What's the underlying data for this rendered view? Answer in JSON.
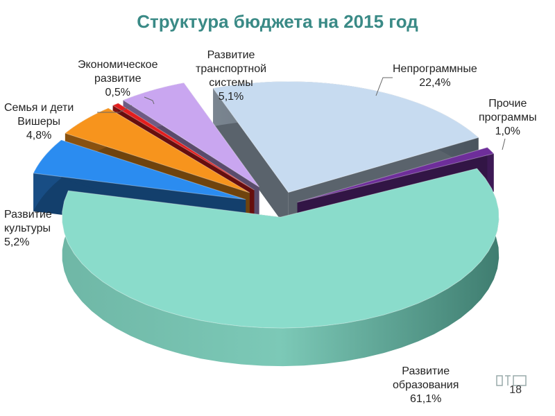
{
  "chart_data": {
    "type": "pie",
    "title": "Структура бюджета на 2015 год",
    "slices": [
      {
        "label": "Развитие образования",
        "value": 61.1,
        "value_text": "61,1%",
        "color": "#8ADCCB"
      },
      {
        "label": "Непрограммные",
        "value": 22.4,
        "value_text": "22,4%",
        "color": "#C7DBF0"
      },
      {
        "label": "Прочие программы",
        "value": 1.0,
        "value_text": "1,0%",
        "color": "#6E2E9A"
      },
      {
        "label": "Развитие культуры",
        "value": 5.2,
        "value_text": "5,2%",
        "color": "#2B8CF0"
      },
      {
        "label": "Семья и дети Вишеры",
        "value": 4.8,
        "value_text": "4,8%",
        "color": "#F7941D"
      },
      {
        "label": "Экономическое развитие",
        "value": 0.5,
        "value_text": "0,5%",
        "color": "#E31E1E"
      },
      {
        "label": "Развитие транспортной системы",
        "value": 5.1,
        "value_text": "5,1%",
        "color": "#C9A6F0"
      }
    ],
    "style": "3d-exploded"
  },
  "page": {
    "number": "18"
  },
  "labels": {
    "education": {
      "l1": "Развитие",
      "l2": "образования",
      "l3": "61,1%"
    },
    "nonprog": {
      "l1": "Непрограммные",
      "l2": "22,4%"
    },
    "other": {
      "l1": "Прочие",
      "l2": "программы",
      "l3": "1,0%"
    },
    "culture": {
      "l1": "Развитие",
      "l2": "культуры",
      "l3": "5,2%"
    },
    "family": {
      "l1": "Семья и дети",
      "l2": "Вишеры",
      "l3": "4,8%"
    },
    "econ": {
      "l1": "Экономическое",
      "l2": "развитие",
      "l3": "0,5%"
    },
    "transport": {
      "l1": "Развитие",
      "l2": "транспортной",
      "l3": "системы",
      "l4": "5,1%"
    }
  }
}
